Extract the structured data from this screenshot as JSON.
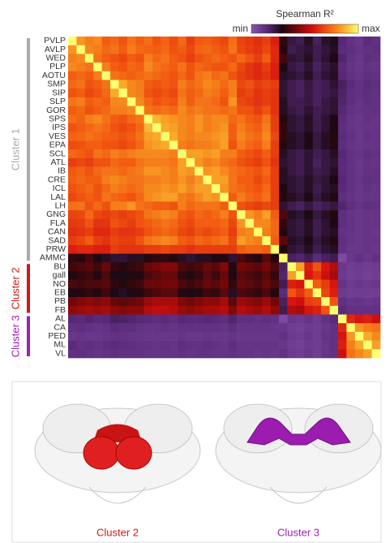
{
  "chart_data": {
    "type": "heatmap",
    "colorbar_label": "Spearman R²",
    "colorbar_ticks": [
      {
        "value": 0,
        "label": "min"
      },
      {
        "value": 100,
        "label": "max"
      }
    ],
    "colormap": [
      "#8a55b0",
      "#5a2a7a",
      "#1a0810",
      "#7a0808",
      "#d41010",
      "#f25a10",
      "#f9a828",
      "#ffff70"
    ],
    "categories": [
      "PVLP",
      "AVLP",
      "WED",
      "PLP",
      "AOTU",
      "SMP",
      "SIP",
      "SLP",
      "GOR",
      "SPS",
      "IPS",
      "VES",
      "EPA",
      "SCL",
      "ATL",
      "IB",
      "CRE",
      "ICL",
      "LAL",
      "LH",
      "GNG",
      "FLA",
      "CAN",
      "SAD",
      "PRW",
      "AMMC",
      "BU",
      "gall",
      "NO",
      "EB",
      "PB",
      "FB",
      "AL",
      "CA",
      "PED",
      "ML",
      "VL"
    ],
    "clusters": [
      {
        "name": "Cluster 1",
        "color": "#aaaaaa"
      },
      {
        "name": "Cluster 2",
        "color": "#d01818"
      },
      {
        "name": "Cluster 3",
        "color": "#a020b0"
      }
    ],
    "values": [
      [
        100,
        82,
        78,
        80,
        72,
        74,
        70,
        76,
        72,
        75,
        70,
        73,
        69,
        74,
        66,
        71,
        72,
        70,
        68,
        75,
        67,
        65,
        63,
        66,
        60,
        32,
        22,
        20,
        26,
        18,
        25,
        27,
        15,
        12,
        10,
        14,
        12
      ],
      [
        82,
        100,
        80,
        78,
        74,
        76,
        72,
        78,
        74,
        73,
        72,
        74,
        70,
        72,
        68,
        73,
        74,
        72,
        70,
        76,
        68,
        66,
        64,
        68,
        62,
        30,
        20,
        22,
        24,
        20,
        23,
        26,
        14,
        13,
        11,
        12,
        13
      ],
      [
        78,
        80,
        100,
        76,
        72,
        70,
        68,
        72,
        70,
        78,
        74,
        76,
        72,
        70,
        66,
        70,
        72,
        74,
        72,
        70,
        74,
        70,
        66,
        72,
        62,
        35,
        24,
        22,
        26,
        20,
        24,
        28,
        16,
        12,
        10,
        13,
        12
      ],
      [
        80,
        78,
        76,
        100,
        78,
        72,
        70,
        74,
        72,
        80,
        76,
        74,
        72,
        76,
        70,
        74,
        72,
        70,
        70,
        74,
        68,
        64,
        62,
        66,
        60,
        28,
        22,
        20,
        24,
        18,
        22,
        25,
        14,
        11,
        10,
        12,
        11
      ],
      [
        72,
        74,
        72,
        78,
        100,
        76,
        74,
        72,
        74,
        76,
        74,
        72,
        70,
        74,
        70,
        76,
        78,
        74,
        76,
        70,
        66,
        64,
        62,
        64,
        60,
        26,
        24,
        22,
        26,
        20,
        24,
        26,
        15,
        12,
        11,
        13,
        12
      ],
      [
        74,
        76,
        70,
        72,
        76,
        100,
        86,
        80,
        78,
        72,
        70,
        72,
        70,
        78,
        74,
        76,
        80,
        78,
        74,
        78,
        68,
        70,
        66,
        68,
        66,
        24,
        20,
        18,
        22,
        18,
        20,
        24,
        18,
        14,
        12,
        14,
        13
      ],
      [
        70,
        72,
        68,
        70,
        74,
        86,
        100,
        80,
        78,
        70,
        68,
        70,
        68,
        76,
        72,
        74,
        78,
        76,
        72,
        78,
        66,
        68,
        64,
        66,
        64,
        24,
        20,
        18,
        22,
        18,
        20,
        22,
        17,
        13,
        12,
        13,
        12
      ],
      [
        76,
        78,
        72,
        74,
        72,
        80,
        80,
        100,
        80,
        74,
        70,
        72,
        70,
        78,
        72,
        76,
        76,
        74,
        70,
        82,
        68,
        66,
        64,
        66,
        64,
        26,
        20,
        20,
        22,
        18,
        22,
        24,
        16,
        13,
        11,
        13,
        12
      ],
      [
        72,
        74,
        70,
        72,
        74,
        78,
        78,
        80,
        100,
        76,
        74,
        76,
        74,
        80,
        76,
        78,
        76,
        76,
        74,
        76,
        70,
        70,
        66,
        70,
        64,
        26,
        22,
        20,
        24,
        20,
        22,
        24,
        15,
        12,
        11,
        12,
        12
      ],
      [
        75,
        73,
        78,
        80,
        76,
        72,
        70,
        74,
        76,
        100,
        88,
        84,
        82,
        80,
        78,
        82,
        78,
        80,
        80,
        74,
        76,
        72,
        70,
        76,
        66,
        30,
        24,
        22,
        26,
        20,
        24,
        28,
        14,
        11,
        10,
        12,
        11
      ],
      [
        70,
        72,
        74,
        76,
        74,
        70,
        68,
        70,
        74,
        88,
        100,
        86,
        84,
        80,
        78,
        82,
        78,
        80,
        82,
        72,
        78,
        74,
        72,
        78,
        66,
        32,
        24,
        22,
        26,
        20,
        24,
        28,
        13,
        11,
        10,
        11,
        11
      ],
      [
        73,
        74,
        76,
        74,
        72,
        72,
        70,
        72,
        76,
        84,
        86,
        100,
        86,
        80,
        78,
        80,
        80,
        82,
        84,
        72,
        80,
        76,
        74,
        80,
        68,
        32,
        26,
        24,
        28,
        22,
        26,
        30,
        14,
        12,
        10,
        12,
        11
      ],
      [
        69,
        70,
        72,
        72,
        70,
        70,
        68,
        70,
        74,
        82,
        84,
        86,
        100,
        78,
        76,
        78,
        78,
        80,
        84,
        70,
        78,
        74,
        72,
        78,
        66,
        30,
        26,
        24,
        28,
        22,
        26,
        30,
        13,
        11,
        10,
        11,
        11
      ],
      [
        74,
        72,
        70,
        76,
        74,
        78,
        76,
        78,
        80,
        80,
        80,
        80,
        78,
        100,
        84,
        84,
        82,
        84,
        78,
        78,
        72,
        70,
        68,
        72,
        66,
        26,
        22,
        20,
        24,
        20,
        22,
        26,
        15,
        12,
        11,
        13,
        12
      ],
      [
        66,
        68,
        66,
        70,
        70,
        74,
        72,
        72,
        76,
        78,
        78,
        78,
        76,
        84,
        100,
        82,
        78,
        80,
        76,
        74,
        70,
        68,
        66,
        70,
        64,
        24,
        22,
        20,
        24,
        18,
        22,
        24,
        14,
        12,
        10,
        12,
        11
      ],
      [
        71,
        73,
        70,
        74,
        76,
        76,
        74,
        76,
        78,
        82,
        82,
        80,
        78,
        84,
        82,
        100,
        82,
        84,
        80,
        76,
        74,
        72,
        70,
        74,
        66,
        26,
        22,
        20,
        24,
        20,
        22,
        26,
        14,
        12,
        10,
        12,
        12
      ],
      [
        72,
        74,
        72,
        72,
        78,
        80,
        78,
        76,
        76,
        78,
        78,
        80,
        78,
        82,
        78,
        82,
        100,
        84,
        84,
        76,
        72,
        72,
        68,
        72,
        66,
        26,
        24,
        22,
        26,
        22,
        24,
        28,
        15,
        12,
        11,
        13,
        12
      ],
      [
        70,
        72,
        74,
        70,
        74,
        78,
        76,
        74,
        76,
        80,
        80,
        82,
        80,
        84,
        80,
        84,
        84,
        100,
        82,
        76,
        74,
        72,
        70,
        74,
        66,
        28,
        24,
        22,
        26,
        20,
        24,
        26,
        14,
        12,
        10,
        12,
        11
      ],
      [
        68,
        70,
        72,
        70,
        76,
        74,
        72,
        70,
        74,
        80,
        82,
        84,
        84,
        78,
        76,
        80,
        84,
        82,
        100,
        72,
        78,
        74,
        72,
        76,
        66,
        30,
        26,
        24,
        28,
        22,
        26,
        30,
        13,
        11,
        10,
        11,
        11
      ],
      [
        75,
        76,
        70,
        74,
        70,
        78,
        78,
        82,
        76,
        74,
        72,
        72,
        70,
        78,
        74,
        76,
        76,
        76,
        72,
        100,
        70,
        68,
        66,
        68,
        66,
        24,
        20,
        18,
        22,
        18,
        20,
        22,
        16,
        13,
        11,
        13,
        12
      ],
      [
        67,
        68,
        74,
        68,
        66,
        68,
        66,
        68,
        70,
        76,
        78,
        80,
        78,
        72,
        70,
        74,
        72,
        74,
        78,
        70,
        100,
        82,
        78,
        84,
        72,
        36,
        26,
        24,
        28,
        22,
        26,
        30,
        13,
        11,
        10,
        11,
        11
      ],
      [
        65,
        66,
        70,
        64,
        64,
        70,
        68,
        66,
        70,
        72,
        74,
        76,
        74,
        70,
        68,
        72,
        72,
        72,
        74,
        68,
        82,
        100,
        80,
        80,
        74,
        32,
        24,
        22,
        26,
        20,
        24,
        28,
        13,
        11,
        10,
        11,
        11
      ],
      [
        63,
        64,
        66,
        62,
        62,
        66,
        64,
        64,
        66,
        70,
        72,
        74,
        72,
        68,
        66,
        70,
        68,
        70,
        72,
        66,
        78,
        80,
        100,
        78,
        74,
        30,
        24,
        22,
        26,
        20,
        24,
        26,
        12,
        11,
        10,
        11,
        10
      ],
      [
        66,
        68,
        72,
        66,
        64,
        68,
        66,
        66,
        70,
        76,
        78,
        80,
        78,
        72,
        70,
        74,
        72,
        74,
        76,
        68,
        84,
        80,
        78,
        100,
        72,
        38,
        26,
        24,
        28,
        22,
        26,
        30,
        13,
        11,
        10,
        11,
        11
      ],
      [
        60,
        62,
        62,
        60,
        60,
        66,
        64,
        64,
        64,
        66,
        66,
        68,
        66,
        66,
        64,
        66,
        66,
        66,
        66,
        66,
        72,
        74,
        74,
        72,
        100,
        30,
        24,
        22,
        26,
        20,
        24,
        26,
        12,
        10,
        10,
        11,
        10
      ],
      [
        32,
        30,
        35,
        28,
        26,
        24,
        24,
        26,
        26,
        30,
        32,
        32,
        30,
        26,
        24,
        26,
        26,
        28,
        30,
        24,
        36,
        32,
        30,
        38,
        30,
        100,
        18,
        16,
        20,
        14,
        18,
        20,
        4,
        10,
        12,
        10,
        12
      ],
      [
        34,
        36,
        38,
        34,
        40,
        32,
        30,
        32,
        34,
        40,
        42,
        44,
        44,
        36,
        34,
        36,
        40,
        38,
        44,
        30,
        42,
        40,
        38,
        42,
        36,
        18,
        100,
        84,
        60,
        70,
        58,
        52,
        10,
        8,
        9,
        8,
        9
      ],
      [
        30,
        32,
        34,
        30,
        36,
        28,
        28,
        30,
        30,
        36,
        38,
        40,
        40,
        32,
        30,
        32,
        38,
        34,
        40,
        28,
        38,
        36,
        34,
        38,
        32,
        16,
        84,
        100,
        58,
        64,
        56,
        50,
        9,
        7,
        8,
        7,
        8
      ],
      [
        36,
        34,
        36,
        36,
        38,
        32,
        30,
        32,
        34,
        40,
        40,
        42,
        42,
        36,
        34,
        36,
        40,
        38,
        42,
        32,
        40,
        38,
        36,
        40,
        36,
        20,
        60,
        58,
        100,
        72,
        66,
        58,
        11,
        9,
        10,
        9,
        10
      ],
      [
        28,
        30,
        32,
        30,
        34,
        28,
        26,
        28,
        30,
        34,
        36,
        38,
        38,
        30,
        28,
        30,
        34,
        32,
        38,
        26,
        36,
        34,
        32,
        36,
        30,
        14,
        70,
        64,
        72,
        100,
        68,
        60,
        9,
        8,
        8,
        8,
        8
      ],
      [
        42,
        44,
        46,
        44,
        46,
        40,
        38,
        40,
        42,
        48,
        50,
        50,
        50,
        44,
        42,
        44,
        46,
        46,
        50,
        38,
        48,
        46,
        44,
        48,
        42,
        18,
        58,
        56,
        66,
        68,
        100,
        70,
        12,
        10,
        11,
        10,
        11
      ],
      [
        46,
        48,
        50,
        48,
        50,
        46,
        44,
        46,
        46,
        52,
        54,
        54,
        52,
        48,
        46,
        48,
        50,
        50,
        52,
        44,
        52,
        50,
        48,
        52,
        46,
        20,
        52,
        50,
        58,
        60,
        70,
        100,
        14,
        12,
        12,
        12,
        12
      ],
      [
        15,
        14,
        16,
        14,
        15,
        18,
        17,
        16,
        15,
        14,
        13,
        14,
        13,
        15,
        14,
        14,
        15,
        14,
        13,
        16,
        13,
        13,
        12,
        13,
        12,
        4,
        10,
        9,
        11,
        9,
        12,
        14,
        100,
        62,
        58,
        60,
        56
      ],
      [
        12,
        13,
        12,
        11,
        12,
        14,
        13,
        13,
        12,
        11,
        11,
        12,
        11,
        12,
        12,
        12,
        12,
        12,
        11,
        13,
        11,
        11,
        11,
        11,
        10,
        10,
        8,
        7,
        9,
        8,
        10,
        12,
        62,
        100,
        82,
        78,
        76
      ],
      [
        10,
        11,
        10,
        10,
        11,
        12,
        12,
        11,
        11,
        10,
        10,
        10,
        10,
        11,
        10,
        10,
        11,
        10,
        10,
        11,
        10,
        10,
        10,
        10,
        10,
        12,
        9,
        8,
        10,
        8,
        11,
        12,
        58,
        82,
        100,
        86,
        80
      ],
      [
        14,
        12,
        13,
        12,
        13,
        14,
        13,
        13,
        12,
        12,
        11,
        12,
        11,
        13,
        12,
        12,
        13,
        12,
        11,
        13,
        11,
        11,
        11,
        11,
        11,
        10,
        8,
        7,
        9,
        8,
        10,
        12,
        60,
        78,
        86,
        100,
        84
      ],
      [
        12,
        13,
        12,
        11,
        12,
        13,
        12,
        12,
        12,
        11,
        11,
        11,
        11,
        12,
        11,
        12,
        12,
        11,
        11,
        12,
        11,
        11,
        10,
        11,
        10,
        12,
        9,
        8,
        10,
        8,
        11,
        12,
        56,
        76,
        80,
        84,
        100
      ]
    ]
  }
}
